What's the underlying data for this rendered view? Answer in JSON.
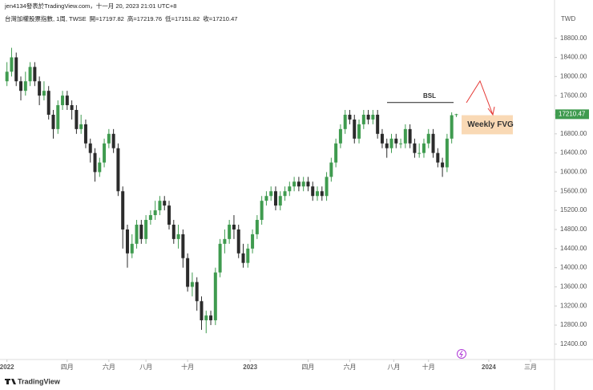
{
  "header": {
    "credit": "jen4134發表於TradingView.com，十一月 20, 2023 21:01 UTC+8",
    "symbol": "台灣加權股票指數, 1周, TWSE",
    "open_label": "開=",
    "high_label": "高=",
    "low_label": "低=",
    "close_label": "收=",
    "currency": "TWD",
    "brand": "TradingView"
  },
  "chart_data": {
    "type": "candlestick",
    "open": [
      17900,
      18100,
      18400,
      17900,
      17700,
      17900,
      18200,
      17900,
      17600,
      17700,
      17200,
      16900,
      17400,
      17600,
      17400,
      17300,
      16900,
      17000,
      16600,
      16400,
      16000,
      16200,
      16600,
      16800,
      16500,
      15600,
      14800,
      14300,
      14500,
      14900,
      14600,
      15000,
      15100,
      15200,
      15400,
      15300,
      14900,
      14600,
      14700,
      14200,
      13600,
      13700,
      13300,
      12900,
      13000,
      12900,
      13900,
      14500,
      14600,
      14900,
      14800,
      14300,
      14100,
      14400,
      14700,
      15000,
      15400,
      15500,
      15600,
      15300,
      15500,
      15600,
      15700,
      15800,
      15700,
      15800,
      15700,
      15500,
      15600,
      15500,
      15900,
      16200,
      16600,
      16900,
      17200,
      17100,
      16700,
      17000,
      17200,
      17100,
      17200,
      16800,
      16600,
      16500,
      16700,
      16600,
      16600,
      16900,
      16600,
      16400,
      16400,
      16600,
      16800,
      16400,
      16200,
      16100,
      16700,
      17197.82
    ],
    "high": [
      18300,
      18600,
      18500,
      18000,
      18100,
      18300,
      18300,
      18000,
      17900,
      17800,
      17300,
      17500,
      17700,
      17700,
      17500,
      17400,
      17200,
      17100,
      16700,
      16500,
      16300,
      16700,
      16900,
      16900,
      16600,
      15700,
      14900,
      14700,
      15000,
      15000,
      15100,
      15200,
      15400,
      15500,
      15500,
      15400,
      15000,
      14900,
      14800,
      14300,
      13900,
      13800,
      13400,
      13100,
      13100,
      14000,
      14600,
      14800,
      15000,
      15100,
      14900,
      14500,
      14500,
      14800,
      15100,
      15500,
      15600,
      15700,
      15700,
      15600,
      15700,
      15800,
      15900,
      15900,
      15900,
      15900,
      15800,
      15700,
      15700,
      16000,
      16300,
      16700,
      17000,
      17300,
      17300,
      17200,
      17100,
      17300,
      17300,
      17300,
      17300,
      16900,
      16700,
      16800,
      16800,
      16700,
      17000,
      17000,
      16700,
      16600,
      16700,
      16900,
      16900,
      16500,
      16300,
      16800,
      17250,
      17219.76
    ],
    "low": [
      17800,
      18000,
      17800,
      17500,
      17600,
      17800,
      17800,
      17400,
      17500,
      17100,
      16700,
      16800,
      17300,
      17300,
      17100,
      16800,
      16800,
      16500,
      16200,
      15800,
      15900,
      16100,
      16500,
      16400,
      15500,
      14400,
      14000,
      14200,
      14400,
      14500,
      14500,
      14900,
      15000,
      15100,
      15200,
      14800,
      14500,
      14400,
      14000,
      13500,
      13400,
      13100,
      12700,
      12630,
      12800,
      12800,
      13800,
      14300,
      14500,
      14600,
      14200,
      14000,
      14000,
      14300,
      14600,
      14900,
      15300,
      15400,
      15200,
      15200,
      15400,
      15500,
      15600,
      15600,
      15600,
      15600,
      15400,
      15400,
      15400,
      15400,
      15800,
      16100,
      16500,
      16800,
      17000,
      16600,
      16600,
      16900,
      17000,
      17000,
      16700,
      16500,
      16300,
      16400,
      16500,
      16500,
      16500,
      16500,
      16300,
      16300,
      16300,
      16500,
      16300,
      16100,
      15900,
      16000,
      16600,
      17151.82
    ],
    "close": [
      18100,
      18400,
      17900,
      17700,
      17900,
      18200,
      17900,
      17600,
      17700,
      17200,
      16900,
      17400,
      17600,
      17400,
      17300,
      16900,
      17000,
      16600,
      16400,
      16000,
      16200,
      16600,
      16800,
      16500,
      15600,
      14800,
      14300,
      14500,
      14900,
      14600,
      15000,
      15100,
      15200,
      15400,
      15300,
      14900,
      14600,
      14700,
      14200,
      13600,
      13700,
      13300,
      12900,
      13000,
      12900,
      13900,
      14500,
      14600,
      14900,
      14800,
      14300,
      14100,
      14400,
      14700,
      15000,
      15400,
      15500,
      15600,
      15300,
      15500,
      15600,
      15700,
      15800,
      15700,
      15800,
      15700,
      15500,
      15600,
      15500,
      15900,
      16200,
      16600,
      16900,
      17200,
      17100,
      16700,
      17000,
      17200,
      17100,
      17200,
      16800,
      16600,
      16500,
      16700,
      16600,
      16600,
      16900,
      16600,
      16400,
      16400,
      16600,
      16800,
      16400,
      16200,
      16100,
      16700,
      17190,
      17210.47
    ],
    "up_color": "#3f9b4f",
    "down_color": "#2b2b2b",
    "xlim": [
      -1.5,
      118.2
    ],
    "xticks": [
      {
        "value": 0,
        "label": "2022"
      },
      {
        "value": 13,
        "label": "四月"
      },
      {
        "value": 22,
        "label": "六月"
      },
      {
        "value": 30,
        "label": "八月"
      },
      {
        "value": 39,
        "label": "十月"
      },
      {
        "value": 52.5,
        "label": "2023"
      },
      {
        "value": 65,
        "label": "四月"
      },
      {
        "value": 74,
        "label": "六月"
      },
      {
        "value": 83.5,
        "label": "八月"
      },
      {
        "value": 91,
        "label": "十月"
      },
      {
        "value": 104,
        "label": "2024"
      },
      {
        "value": 113,
        "label": "三月"
      }
    ],
    "ylim": [
      12130,
      19600
    ],
    "yticks": [
      {
        "value": 12400,
        "label": "12400.00"
      },
      {
        "value": 12800,
        "label": "12800.00"
      },
      {
        "value": 13200,
        "label": "13200.00"
      },
      {
        "value": 13600,
        "label": "13600.00"
      },
      {
        "value": 14000,
        "label": "14000.00"
      },
      {
        "value": 14400,
        "label": "14400.00"
      },
      {
        "value": 14800,
        "label": "14800.00"
      },
      {
        "value": 15200,
        "label": "15200.00"
      },
      {
        "value": 15600,
        "label": "15600.00"
      },
      {
        "value": 16000,
        "label": "16000.00"
      },
      {
        "value": 16400,
        "label": "16400.00"
      },
      {
        "value": 16800,
        "label": "16800.00"
      },
      {
        "value": 17200,
        "label": "17200.00"
      },
      {
        "value": 17600,
        "label": "17600.00"
      },
      {
        "value": 18000,
        "label": "18000.00"
      },
      {
        "value": 18400,
        "label": "18400.00"
      },
      {
        "value": 18800,
        "label": "18800.00"
      }
    ],
    "grid": false,
    "bsl": {
      "label": "BSL",
      "level": 17456
    },
    "fvg": {
      "label": "Weekly FVG",
      "low": 16790,
      "high": 17190,
      "color": "#f9d9b5"
    },
    "last_price_color": "#3f9b4f"
  }
}
